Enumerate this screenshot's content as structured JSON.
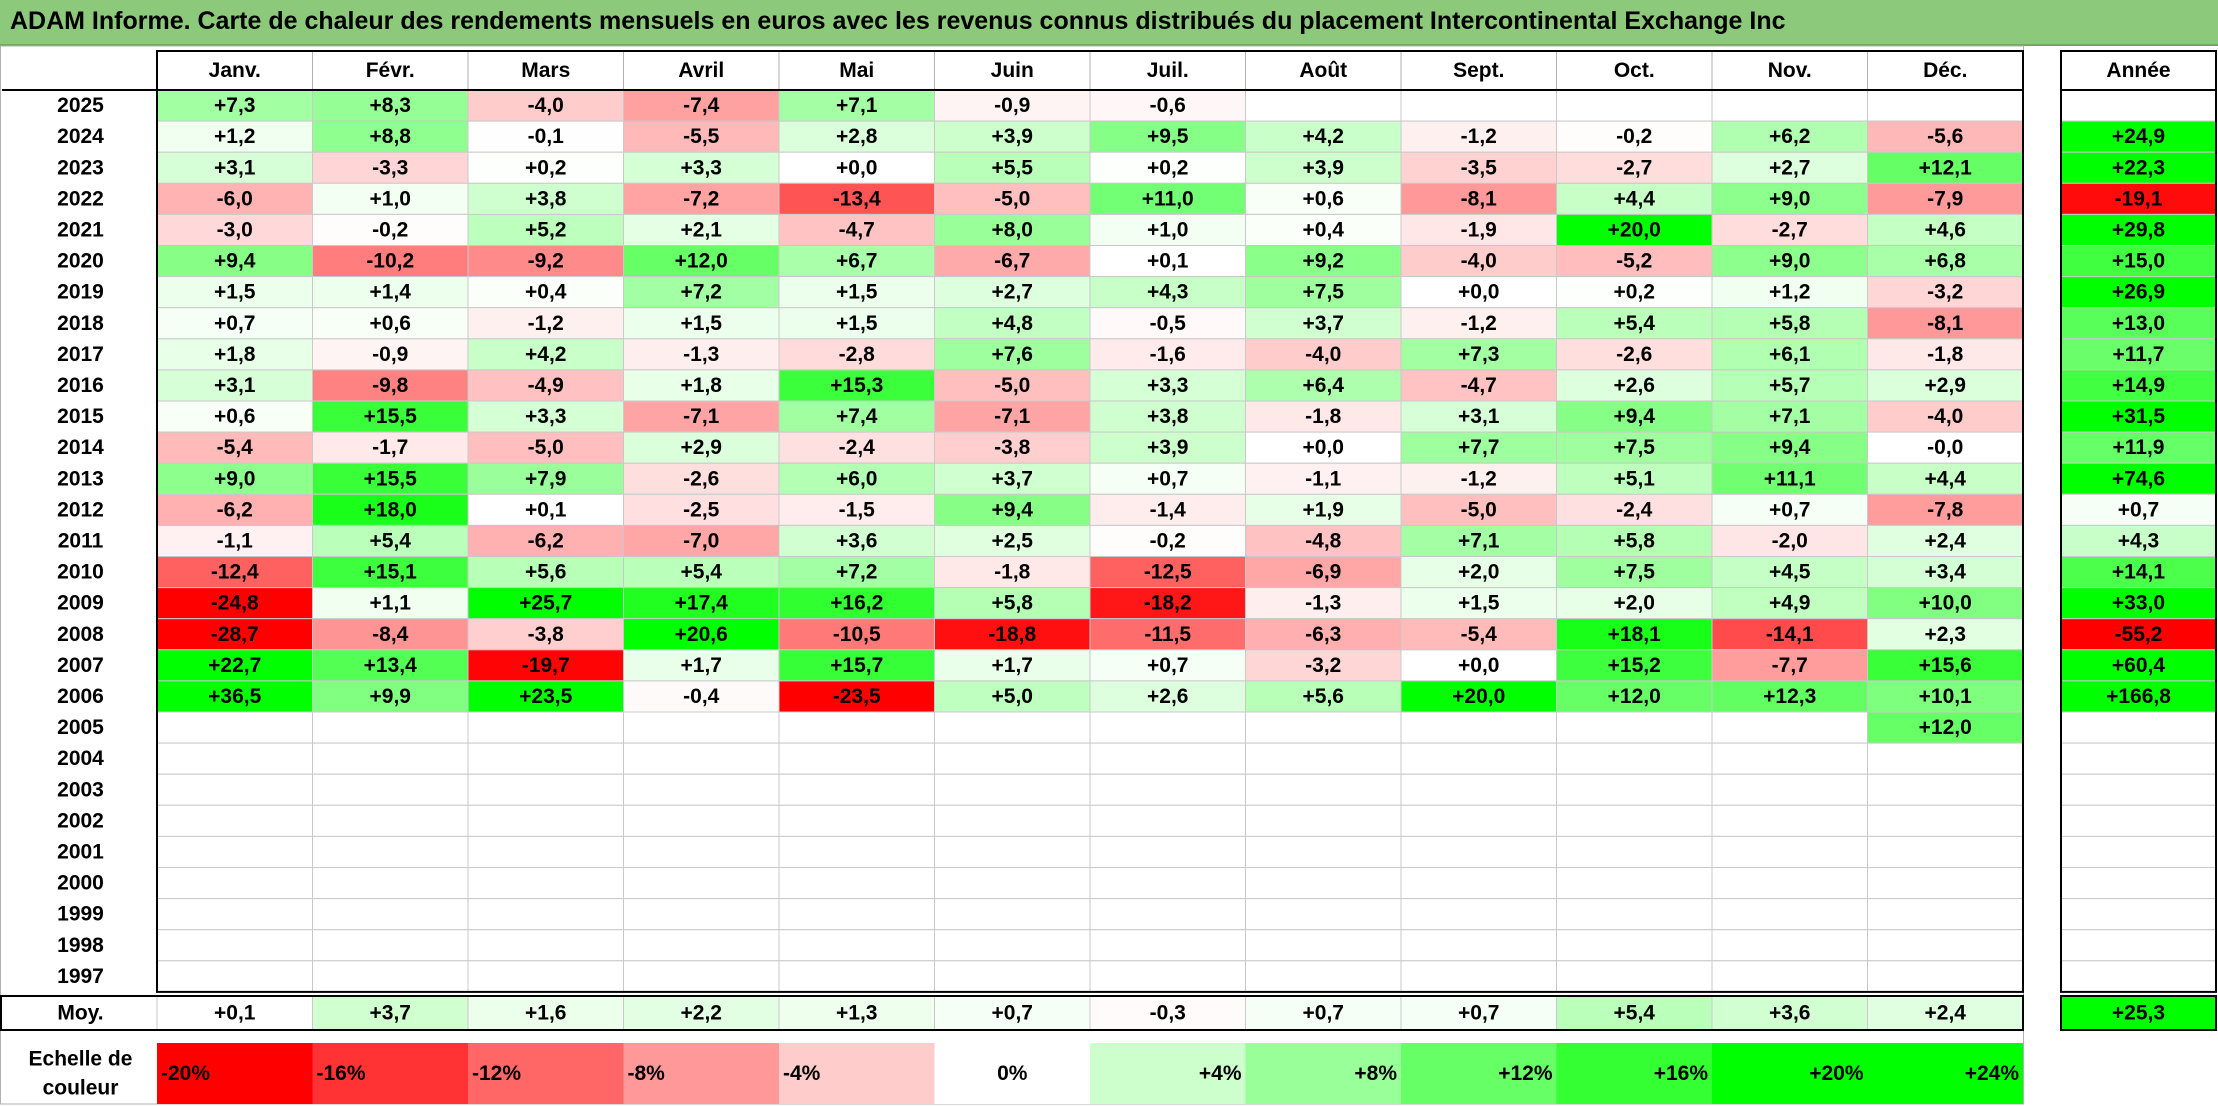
{
  "title": "ADAM Informe. Carte de chaleur des rendements mensuels en euros avec les revenus connus distribués du placement Intercontinental Exchange Inc",
  "colors": {
    "title_bg": "#8cc97a",
    "positive_max": "#00ff00",
    "negative_max": "#ff0000",
    "neutral": "#ffffff"
  },
  "chart_data": {
    "type": "heatmap",
    "months": [
      "Janv.",
      "Févr.",
      "Mars",
      "Avril",
      "Mai",
      "Juin",
      "Juil.",
      "Août",
      "Sept.",
      "Oct.",
      "Nov.",
      "Déc."
    ],
    "year_header": "Année",
    "rows": [
      {
        "year": "2025",
        "values": [
          "+7,3",
          "+8,3",
          "-4,0",
          "-7,4",
          "+7,1",
          "-0,9",
          "-0,6",
          "",
          "",
          "",
          "",
          ""
        ],
        "annual": ""
      },
      {
        "year": "2024",
        "values": [
          "+1,2",
          "+8,8",
          "-0,1",
          "-5,5",
          "+2,8",
          "+3,9",
          "+9,5",
          "+4,2",
          "-1,2",
          "-0,2",
          "+6,2",
          "-5,6"
        ],
        "annual": "+24,9"
      },
      {
        "year": "2023",
        "values": [
          "+3,1",
          "-3,3",
          "+0,2",
          "+3,3",
          "+0,0",
          "+5,5",
          "+0,2",
          "+3,9",
          "-3,5",
          "-2,7",
          "+2,7",
          "+12,1"
        ],
        "annual": "+22,3"
      },
      {
        "year": "2022",
        "values": [
          "-6,0",
          "+1,0",
          "+3,8",
          "-7,2",
          "-13,4",
          "-5,0",
          "+11,0",
          "+0,6",
          "-8,1",
          "+4,4",
          "+9,0",
          "-7,9"
        ],
        "annual": "-19,1"
      },
      {
        "year": "2021",
        "values": [
          "-3,0",
          "-0,2",
          "+5,2",
          "+2,1",
          "-4,7",
          "+8,0",
          "+1,0",
          "+0,4",
          "-1,9",
          "+20,0",
          "-2,7",
          "+4,6"
        ],
        "annual": "+29,8"
      },
      {
        "year": "2020",
        "values": [
          "+9,4",
          "-10,2",
          "-9,2",
          "+12,0",
          "+6,7",
          "-6,7",
          "+0,1",
          "+9,2",
          "-4,0",
          "-5,2",
          "+9,0",
          "+6,8"
        ],
        "annual": "+15,0"
      },
      {
        "year": "2019",
        "values": [
          "+1,5",
          "+1,4",
          "+0,4",
          "+7,2",
          "+1,5",
          "+2,7",
          "+4,3",
          "+7,5",
          "+0,0",
          "+0,2",
          "+1,2",
          "-3,2"
        ],
        "annual": "+26,9"
      },
      {
        "year": "2018",
        "values": [
          "+0,7",
          "+0,6",
          "-1,2",
          "+1,5",
          "+1,5",
          "+4,8",
          "-0,5",
          "+3,7",
          "-1,2",
          "+5,4",
          "+5,8",
          "-8,1"
        ],
        "annual": "+13,0"
      },
      {
        "year": "2017",
        "values": [
          "+1,8",
          "-0,9",
          "+4,2",
          "-1,3",
          "-2,8",
          "+7,6",
          "-1,6",
          "-4,0",
          "+7,3",
          "-2,6",
          "+6,1",
          "-1,8"
        ],
        "annual": "+11,7"
      },
      {
        "year": "2016",
        "values": [
          "+3,1",
          "-9,8",
          "-4,9",
          "+1,8",
          "+15,3",
          "-5,0",
          "+3,3",
          "+6,4",
          "-4,7",
          "+2,6",
          "+5,7",
          "+2,9"
        ],
        "annual": "+14,9"
      },
      {
        "year": "2015",
        "values": [
          "+0,6",
          "+15,5",
          "+3,3",
          "-7,1",
          "+7,4",
          "-7,1",
          "+3,8",
          "-1,8",
          "+3,1",
          "+9,4",
          "+7,1",
          "-4,0"
        ],
        "annual": "+31,5"
      },
      {
        "year": "2014",
        "values": [
          "-5,4",
          "-1,7",
          "-5,0",
          "+2,9",
          "-2,4",
          "-3,8",
          "+3,9",
          "+0,0",
          "+7,7",
          "+7,5",
          "+9,4",
          "-0,0"
        ],
        "annual": "+11,9"
      },
      {
        "year": "2013",
        "values": [
          "+9,0",
          "+15,5",
          "+7,9",
          "-2,6",
          "+6,0",
          "+3,7",
          "+0,7",
          "-1,1",
          "-1,2",
          "+5,1",
          "+11,1",
          "+4,4"
        ],
        "annual": "+74,6"
      },
      {
        "year": "2012",
        "values": [
          "-6,2",
          "+18,0",
          "+0,1",
          "-2,5",
          "-1,5",
          "+9,4",
          "-1,4",
          "+1,9",
          "-5,0",
          "-2,4",
          "+0,7",
          "-7,8"
        ],
        "annual": "+0,7"
      },
      {
        "year": "2011",
        "values": [
          "-1,1",
          "+5,4",
          "-6,2",
          "-7,0",
          "+3,6",
          "+2,5",
          "-0,2",
          "-4,8",
          "+7,1",
          "+5,8",
          "-2,0",
          "+2,4"
        ],
        "annual": "+4,3"
      },
      {
        "year": "2010",
        "values": [
          "-12,4",
          "+15,1",
          "+5,6",
          "+5,4",
          "+7,2",
          "-1,8",
          "-12,5",
          "-6,9",
          "+2,0",
          "+7,5",
          "+4,5",
          "+3,4"
        ],
        "annual": "+14,1"
      },
      {
        "year": "2009",
        "values": [
          "-24,8",
          "+1,1",
          "+25,7",
          "+17,4",
          "+16,2",
          "+5,8",
          "-18,2",
          "-1,3",
          "+1,5",
          "+2,0",
          "+4,9",
          "+10,0"
        ],
        "annual": "+33,0"
      },
      {
        "year": "2008",
        "values": [
          "-28,7",
          "-8,4",
          "-3,8",
          "+20,6",
          "-10,5",
          "-18,8",
          "-11,5",
          "-6,3",
          "-5,4",
          "+18,1",
          "-14,1",
          "+2,3"
        ],
        "annual": "-55,2"
      },
      {
        "year": "2007",
        "values": [
          "+22,7",
          "+13,4",
          "-19,7",
          "+1,7",
          "+15,7",
          "+1,7",
          "+0,7",
          "-3,2",
          "+0,0",
          "+15,2",
          "-7,7",
          "+15,6"
        ],
        "annual": "+60,4"
      },
      {
        "year": "2006",
        "values": [
          "+36,5",
          "+9,9",
          "+23,5",
          "-0,4",
          "-23,5",
          "+5,0",
          "+2,6",
          "+5,6",
          "+20,0",
          "+12,0",
          "+12,3",
          "+10,1"
        ],
        "annual": "+166,8"
      },
      {
        "year": "2005",
        "values": [
          "",
          "",
          "",
          "",
          "",
          "",
          "",
          "",
          "",
          "",
          "",
          "+12,0"
        ],
        "annual": ""
      },
      {
        "year": "2004",
        "values": [
          "",
          "",
          "",
          "",
          "",
          "",
          "",
          "",
          "",
          "",
          "",
          ""
        ],
        "annual": ""
      },
      {
        "year": "2003",
        "values": [
          "",
          "",
          "",
          "",
          "",
          "",
          "",
          "",
          "",
          "",
          "",
          ""
        ],
        "annual": ""
      },
      {
        "year": "2002",
        "values": [
          "",
          "",
          "",
          "",
          "",
          "",
          "",
          "",
          "",
          "",
          "",
          ""
        ],
        "annual": ""
      },
      {
        "year": "2001",
        "values": [
          "",
          "",
          "",
          "",
          "",
          "",
          "",
          "",
          "",
          "",
          "",
          ""
        ],
        "annual": ""
      },
      {
        "year": "2000",
        "values": [
          "",
          "",
          "",
          "",
          "",
          "",
          "",
          "",
          "",
          "",
          "",
          ""
        ],
        "annual": ""
      },
      {
        "year": "1999",
        "values": [
          "",
          "",
          "",
          "",
          "",
          "",
          "",
          "",
          "",
          "",
          "",
          ""
        ],
        "annual": ""
      },
      {
        "year": "1998",
        "values": [
          "",
          "",
          "",
          "",
          "",
          "",
          "",
          "",
          "",
          "",
          "",
          ""
        ],
        "annual": ""
      },
      {
        "year": "1997",
        "values": [
          "",
          "",
          "",
          "",
          "",
          "",
          "",
          "",
          "",
          "",
          "",
          ""
        ],
        "annual": ""
      }
    ],
    "average": {
      "label": "Moy.",
      "values": [
        "+0,1",
        "+3,7",
        "+1,6",
        "+2,2",
        "+1,3",
        "+0,7",
        "-0,3",
        "+0,7",
        "+0,7",
        "+5,4",
        "+3,6",
        "+2,4"
      ],
      "annual": "+25,3"
    },
    "scale": {
      "label_line1": "Echelle de",
      "label_line2": "couleur",
      "values": [
        "-20%",
        "-16%",
        "-12%",
        "-8%",
        "-4%",
        "0%",
        "+4%",
        "+8%",
        "+12%",
        "+16%",
        "+20%",
        "+24%"
      ]
    }
  }
}
